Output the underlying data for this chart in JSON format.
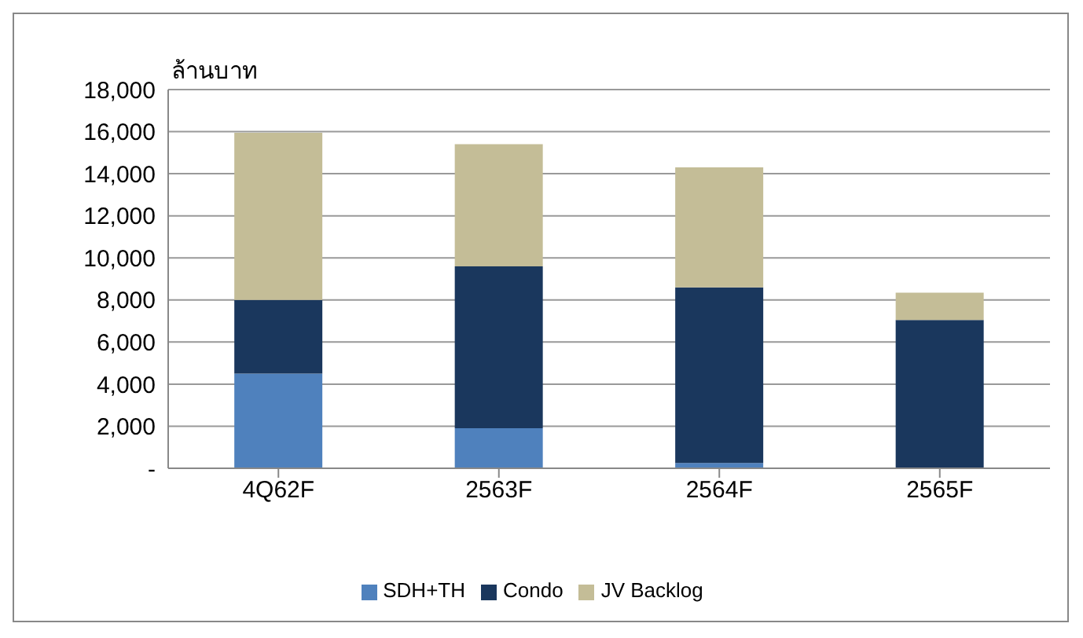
{
  "chart_data": {
    "type": "bar",
    "stacked": true,
    "ylabel": "ล้านบาท",
    "categories": [
      "4Q62F",
      "2563F",
      "2564F",
      "2565F"
    ],
    "series": [
      {
        "name": "SDH+TH",
        "color": "#4f81bd",
        "values": [
          4500,
          1900,
          250,
          null
        ]
      },
      {
        "name": "Condo",
        "color": "#1a375d",
        "values": [
          3500,
          7700,
          8350,
          7050
        ]
      },
      {
        "name": "JV Backlog",
        "color": "#c4bd97",
        "values": [
          7950,
          5800,
          5700,
          1300
        ]
      }
    ],
    "ylim": [
      0,
      18000
    ],
    "yticks": [
      {
        "value": 0,
        "label": "-"
      },
      {
        "value": 2000,
        "label": "2,000"
      },
      {
        "value": 4000,
        "label": "4,000"
      },
      {
        "value": 6000,
        "label": "6,000"
      },
      {
        "value": 8000,
        "label": "8,000"
      },
      {
        "value": 10000,
        "label": "10,000"
      },
      {
        "value": 12000,
        "label": "12,000"
      },
      {
        "value": 14000,
        "label": "14,000"
      },
      {
        "value": 16000,
        "label": "16,000"
      },
      {
        "value": 18000,
        "label": "18,000"
      }
    ],
    "grid": "y",
    "legend": "bottom"
  }
}
